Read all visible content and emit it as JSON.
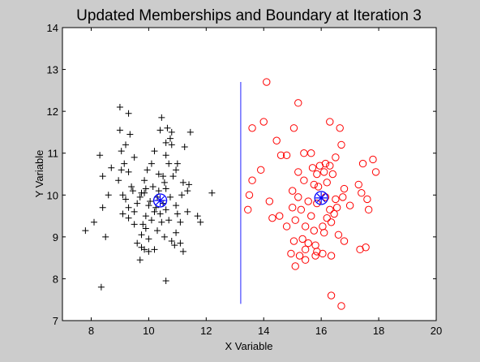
{
  "chart_data": {
    "type": "scatter",
    "title": "Updated Memberships and Boundary at Iteration 3",
    "xlabel": "X Variable",
    "ylabel": "Y Variable",
    "xlim": [
      7,
      20
    ],
    "ylim": [
      7,
      14
    ],
    "xticks": [
      8,
      10,
      12,
      14,
      16,
      18,
      20
    ],
    "yticks": [
      7,
      8,
      9,
      10,
      11,
      12,
      13,
      14
    ],
    "grid": false,
    "series": [
      {
        "marker": "plus",
        "color": "#000000",
        "points": [
          [
            8.35,
            7.8
          ],
          [
            10.6,
            7.95
          ],
          [
            7.8,
            9.15
          ],
          [
            8.1,
            9.35
          ],
          [
            8.5,
            9.0
          ],
          [
            8.4,
            9.7
          ],
          [
            8.6,
            10.0
          ],
          [
            8.4,
            10.45
          ],
          [
            8.3,
            10.95
          ],
          [
            8.7,
            10.65
          ],
          [
            9.0,
            12.1
          ],
          [
            9.3,
            11.95
          ],
          [
            9.0,
            11.55
          ],
          [
            9.35,
            11.45
          ],
          [
            9.2,
            11.2
          ],
          [
            9.05,
            11.05
          ],
          [
            9.5,
            10.9
          ],
          [
            9.15,
            10.75
          ],
          [
            9.05,
            10.6
          ],
          [
            9.3,
            10.55
          ],
          [
            8.95,
            10.35
          ],
          [
            9.4,
            10.2
          ],
          [
            9.1,
            10.0
          ],
          [
            9.2,
            9.9
          ],
          [
            9.6,
            9.8
          ],
          [
            9.3,
            9.7
          ],
          [
            9.5,
            9.6
          ],
          [
            9.1,
            9.55
          ],
          [
            9.3,
            9.45
          ],
          [
            9.5,
            9.3
          ],
          [
            9.8,
            9.3
          ],
          [
            9.9,
            9.2
          ],
          [
            9.75,
            9.05
          ],
          [
            10.0,
            8.95
          ],
          [
            9.6,
            8.85
          ],
          [
            9.75,
            8.75
          ],
          [
            9.85,
            8.7
          ],
          [
            10.0,
            8.65
          ],
          [
            10.2,
            8.7
          ],
          [
            9.7,
            8.45
          ],
          [
            9.9,
            9.5
          ],
          [
            10.1,
            9.4
          ],
          [
            10.2,
            9.6
          ],
          [
            10.3,
            9.15
          ],
          [
            10.55,
            9.0
          ],
          [
            10.8,
            8.9
          ],
          [
            10.9,
            8.8
          ],
          [
            11.1,
            8.85
          ],
          [
            11.2,
            8.65
          ],
          [
            10.95,
            9.1
          ],
          [
            11.1,
            9.35
          ],
          [
            11.0,
            9.55
          ],
          [
            11.35,
            9.6
          ],
          [
            11.7,
            9.5
          ],
          [
            11.8,
            9.35
          ],
          [
            12.2,
            10.05
          ],
          [
            11.35,
            10.1
          ],
          [
            11.15,
            10.0
          ],
          [
            11.2,
            10.3
          ],
          [
            11.4,
            10.25
          ],
          [
            10.95,
            10.6
          ],
          [
            10.85,
            10.45
          ],
          [
            10.7,
            10.75
          ],
          [
            11.0,
            10.75
          ],
          [
            10.6,
            10.95
          ],
          [
            10.8,
            11.2
          ],
          [
            11.25,
            11.15
          ],
          [
            11.45,
            11.5
          ],
          [
            10.45,
            11.85
          ],
          [
            10.4,
            11.55
          ],
          [
            10.65,
            11.6
          ],
          [
            10.8,
            11.5
          ],
          [
            10.75,
            11.35
          ],
          [
            10.6,
            11.25
          ],
          [
            10.2,
            11.05
          ],
          [
            10.1,
            10.75
          ],
          [
            10.35,
            10.5
          ],
          [
            10.5,
            10.45
          ],
          [
            9.95,
            10.6
          ],
          [
            9.85,
            10.35
          ],
          [
            10.15,
            10.2
          ],
          [
            10.35,
            10.1
          ],
          [
            10.6,
            10.15
          ],
          [
            10.75,
            9.95
          ],
          [
            10.5,
            9.8
          ],
          [
            10.3,
            9.95
          ],
          [
            10.05,
            9.85
          ],
          [
            9.75,
            10.05
          ],
          [
            9.85,
            10.05
          ],
          [
            9.7,
            9.95
          ],
          [
            9.45,
            10.1
          ],
          [
            10.0,
            9.75
          ],
          [
            10.25,
            9.7
          ],
          [
            10.4,
            9.55
          ],
          [
            10.6,
            9.65
          ],
          [
            9.9,
            10.15
          ],
          [
            10.55,
            10.3
          ],
          [
            10.95,
            9.75
          ],
          [
            10.7,
            9.4
          ],
          [
            10.45,
            9.35
          ]
        ]
      },
      {
        "marker": "circle",
        "color": "#ff0000",
        "points": [
          [
            14.1,
            12.7
          ],
          [
            15.2,
            12.2
          ],
          [
            14.0,
            11.75
          ],
          [
            16.3,
            11.75
          ],
          [
            13.6,
            11.6
          ],
          [
            15.05,
            11.6
          ],
          [
            16.65,
            11.6
          ],
          [
            14.45,
            11.3
          ],
          [
            16.7,
            11.2
          ],
          [
            14.6,
            10.95
          ],
          [
            14.8,
            10.95
          ],
          [
            15.4,
            11.0
          ],
          [
            15.65,
            11.0
          ],
          [
            16.5,
            10.9
          ],
          [
            17.45,
            10.75
          ],
          [
            17.8,
            10.85
          ],
          [
            13.9,
            10.6
          ],
          [
            15.2,
            10.55
          ],
          [
            15.7,
            10.65
          ],
          [
            15.95,
            10.7
          ],
          [
            16.15,
            10.75
          ],
          [
            16.3,
            10.7
          ],
          [
            15.85,
            10.5
          ],
          [
            16.1,
            10.55
          ],
          [
            17.9,
            10.55
          ],
          [
            13.6,
            10.35
          ],
          [
            15.4,
            10.35
          ],
          [
            15.75,
            10.25
          ],
          [
            15.9,
            10.2
          ],
          [
            16.2,
            10.3
          ],
          [
            16.4,
            10.5
          ],
          [
            16.8,
            10.15
          ],
          [
            17.3,
            10.25
          ],
          [
            17.4,
            10.05
          ],
          [
            13.5,
            10.0
          ],
          [
            15.0,
            10.1
          ],
          [
            15.2,
            9.95
          ],
          [
            15.55,
            9.85
          ],
          [
            15.85,
            9.8
          ],
          [
            16.15,
            9.95
          ],
          [
            16.5,
            9.9
          ],
          [
            16.75,
            9.95
          ],
          [
            17.6,
            9.9
          ],
          [
            14.2,
            9.85
          ],
          [
            15.0,
            9.7
          ],
          [
            15.3,
            9.65
          ],
          [
            16.3,
            9.65
          ],
          [
            16.55,
            9.7
          ],
          [
            17.0,
            9.75
          ],
          [
            13.45,
            9.65
          ],
          [
            14.55,
            9.5
          ],
          [
            15.65,
            9.5
          ],
          [
            16.2,
            9.45
          ],
          [
            16.45,
            9.55
          ],
          [
            17.65,
            9.65
          ],
          [
            14.3,
            9.45
          ],
          [
            15.1,
            9.4
          ],
          [
            15.45,
            9.25
          ],
          [
            16.05,
            9.25
          ],
          [
            16.35,
            9.35
          ],
          [
            14.8,
            9.25
          ],
          [
            15.75,
            9.15
          ],
          [
            16.1,
            9.1
          ],
          [
            16.6,
            9.05
          ],
          [
            16.8,
            8.9
          ],
          [
            15.05,
            8.9
          ],
          [
            15.35,
            8.95
          ],
          [
            15.55,
            8.85
          ],
          [
            15.8,
            8.8
          ],
          [
            15.45,
            8.7
          ],
          [
            15.85,
            8.65
          ],
          [
            16.05,
            8.6
          ],
          [
            16.35,
            8.55
          ],
          [
            17.35,
            8.7
          ],
          [
            17.55,
            8.75
          ],
          [
            14.95,
            8.6
          ],
          [
            15.25,
            8.55
          ],
          [
            15.45,
            8.45
          ],
          [
            15.1,
            8.3
          ],
          [
            15.8,
            8.55
          ],
          [
            16.35,
            7.6
          ],
          [
            16.7,
            7.35
          ]
        ]
      }
    ],
    "centroids": [
      {
        "x": 10.4,
        "y": 9.87,
        "color": "#0000ff"
      },
      {
        "x": 16.0,
        "y": 9.93,
        "color": "#0000ff"
      }
    ],
    "boundary": {
      "x": 13.2,
      "y": [
        7.4,
        12.7
      ],
      "color": "#6b6bff"
    }
  }
}
